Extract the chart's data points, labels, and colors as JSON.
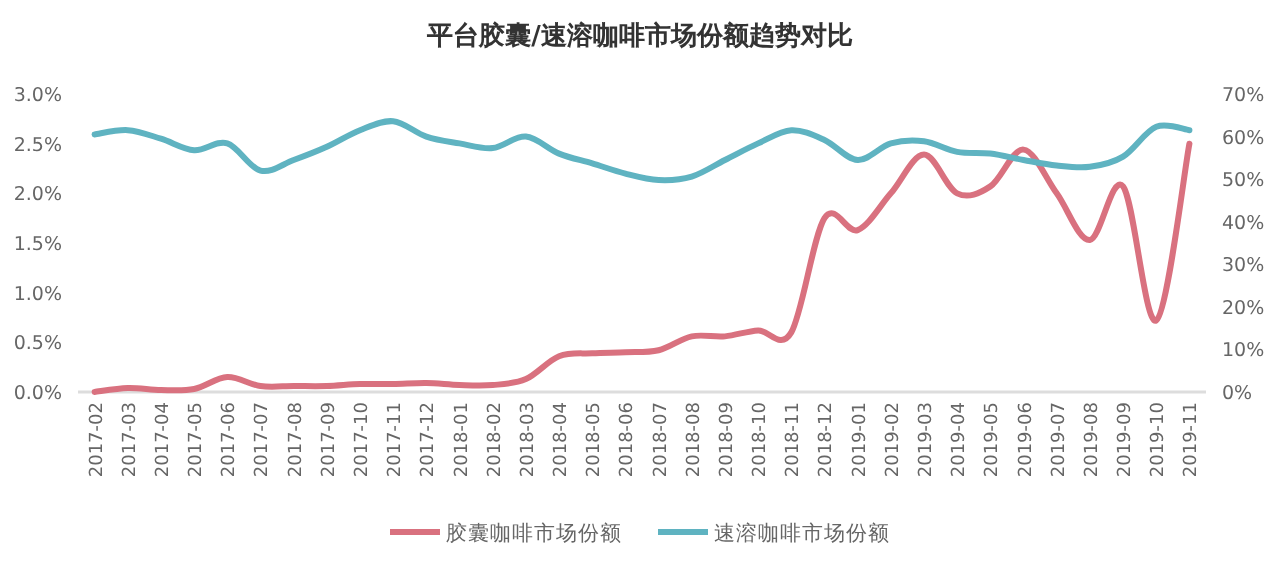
{
  "chart_data": {
    "type": "line",
    "title": "平台胶囊/速溶咖啡市场份额趋势对比",
    "categories": [
      "2017-02",
      "2017-03",
      "2017-04",
      "2017-05",
      "2017-06",
      "2017-07",
      "2017-08",
      "2017-09",
      "2017-10",
      "2017-11",
      "2017-12",
      "2018-01",
      "2018-02",
      "2018-03",
      "2018-04",
      "2018-05",
      "2018-06",
      "2018-07",
      "2018-08",
      "2018-09",
      "2018-10",
      "2018-11",
      "2018-12",
      "2019-01",
      "2019-02",
      "2019-03",
      "2019-04",
      "2019-05",
      "2019-06",
      "2019-07",
      "2019-08",
      "2019-09",
      "2019-10",
      "2019-11"
    ],
    "series": [
      {
        "name": "胶囊咖啡市场份额",
        "color": "#d9717f",
        "values": [
          0.0,
          0.04,
          0.02,
          0.03,
          0.15,
          0.06,
          0.06,
          0.06,
          0.08,
          0.08,
          0.09,
          0.07,
          0.07,
          0.13,
          0.36,
          0.39,
          0.4,
          0.42,
          0.56,
          0.56,
          0.62,
          0.6,
          1.75,
          1.63,
          2.0,
          2.39,
          2.0,
          2.07,
          2.44,
          2.0,
          1.53,
          2.07,
          0.72,
          2.5
        ]
      },
      {
        "name": "速溶咖啡市场份额",
        "color": "#5fb3c1",
        "axis": "y2",
        "values": [
          60.5,
          61.5,
          59.5,
          56.8,
          58.4,
          52,
          54.5,
          57.6,
          61.5,
          63.6,
          60,
          58.4,
          57.3,
          60,
          56,
          53.7,
          51.3,
          49.8,
          50.6,
          54.5,
          58.4,
          61.5,
          59.2,
          54.5,
          58.4,
          58.9,
          56.4,
          56,
          54.5,
          53.2,
          52.9,
          55.3,
          62.3,
          61.5
        ]
      }
    ],
    "ylim": [
      0,
      3.0
    ],
    "yticks": [
      {
        "value": 0,
        "label": "0.0%"
      },
      {
        "value": 0.5,
        "label": "0.5%"
      },
      {
        "value": 1.0,
        "label": "1.0%"
      },
      {
        "value": 1.5,
        "label": "1.5%"
      },
      {
        "value": 2.0,
        "label": "2.0%"
      },
      {
        "value": 2.5,
        "label": "2.5%"
      },
      {
        "value": 3.0,
        "label": "3.0%"
      }
    ],
    "y2lim": [
      0,
      70
    ],
    "y2ticks": [
      {
        "value": 0,
        "label": "0%"
      },
      {
        "value": 10,
        "label": "10%"
      },
      {
        "value": 20,
        "label": "20%"
      },
      {
        "value": 30,
        "label": "30%"
      },
      {
        "value": 40,
        "label": "40%"
      },
      {
        "value": 50,
        "label": "50%"
      },
      {
        "value": 60,
        "label": "60%"
      },
      {
        "value": 70,
        "label": "70%"
      }
    ],
    "grid": false,
    "legend": "bottom",
    "marker": "none",
    "line_style": "solid"
  }
}
